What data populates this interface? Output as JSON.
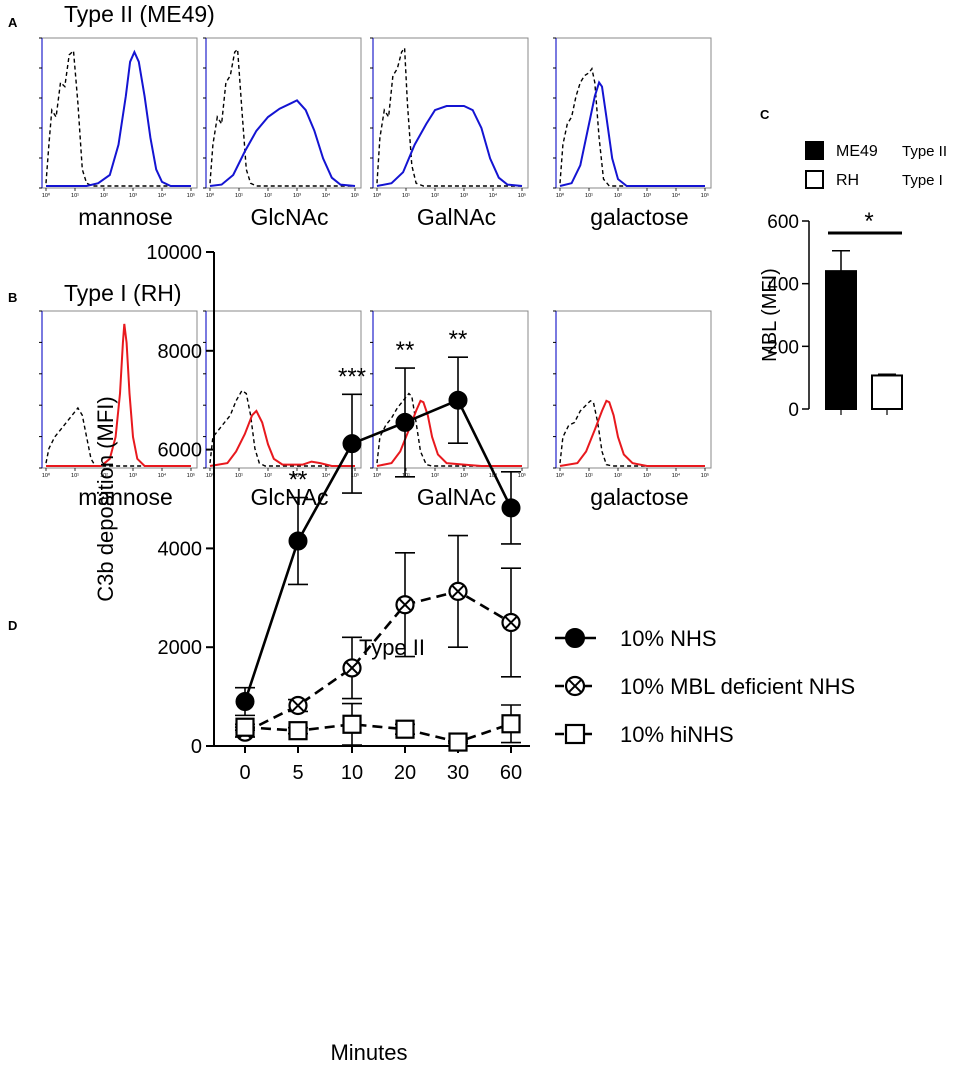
{
  "colors": {
    "type2": "#1414d2",
    "type1": "#e8191e",
    "control": "#000000",
    "axis": "#2222cc",
    "frame": "#888888"
  },
  "panels": {
    "A": {
      "letter": "A",
      "title": "Type II (ME49)"
    },
    "B": {
      "letter": "B",
      "title": "Type I (RH)"
    },
    "C": {
      "letter": "C"
    },
    "D": {
      "letter": "D"
    }
  },
  "chart_data": [
    {
      "id": "A",
      "type": "line",
      "title": "Type II (ME49)",
      "x_scale": "log",
      "xlim": [
        1,
        100000
      ],
      "tick_labels": [
        "10⁰",
        "10¹",
        "10²",
        "10³",
        "10⁴",
        "10⁵"
      ],
      "color": "#1414d2",
      "histograms": [
        {
          "label": "mannose",
          "control": [
            [
              0,
              0.02
            ],
            [
              0.1,
              0.3
            ],
            [
              0.2,
              0.55
            ],
            [
              0.35,
              0.5
            ],
            [
              0.5,
              0.75
            ],
            [
              0.65,
              0.72
            ],
            [
              0.8,
              0.95
            ],
            [
              0.95,
              0.98
            ],
            [
              1.1,
              0.6
            ],
            [
              1.25,
              0.12
            ],
            [
              1.4,
              0.02
            ],
            [
              1.6,
              0.0
            ],
            [
              5,
              0.0
            ]
          ],
          "stained": [
            [
              0,
              0.0
            ],
            [
              1.4,
              0.0
            ],
            [
              1.8,
              0.02
            ],
            [
              2.2,
              0.08
            ],
            [
              2.5,
              0.3
            ],
            [
              2.75,
              0.65
            ],
            [
              2.9,
              0.9
            ],
            [
              3.05,
              0.97
            ],
            [
              3.2,
              0.9
            ],
            [
              3.4,
              0.65
            ],
            [
              3.6,
              0.35
            ],
            [
              3.8,
              0.12
            ],
            [
              4.0,
              0.03
            ],
            [
              4.3,
              0.0
            ],
            [
              5,
              0.0
            ]
          ]
        },
        {
          "label": "GlcNAc",
          "control": [
            [
              0,
              0.02
            ],
            [
              0.1,
              0.3
            ],
            [
              0.25,
              0.5
            ],
            [
              0.4,
              0.45
            ],
            [
              0.55,
              0.75
            ],
            [
              0.7,
              0.8
            ],
            [
              0.85,
              0.97
            ],
            [
              0.95,
              0.99
            ],
            [
              1.1,
              0.55
            ],
            [
              1.25,
              0.12
            ],
            [
              1.4,
              0.02
            ],
            [
              1.6,
              0.0
            ],
            [
              5,
              0.0
            ]
          ],
          "stained": [
            [
              0,
              0.0
            ],
            [
              0.4,
              0.01
            ],
            [
              0.8,
              0.08
            ],
            [
              1.2,
              0.25
            ],
            [
              1.6,
              0.4
            ],
            [
              2.0,
              0.5
            ],
            [
              2.4,
              0.56
            ],
            [
              2.8,
              0.6
            ],
            [
              3.0,
              0.62
            ],
            [
              3.3,
              0.55
            ],
            [
              3.6,
              0.4
            ],
            [
              3.9,
              0.2
            ],
            [
              4.2,
              0.06
            ],
            [
              4.5,
              0.01
            ],
            [
              5,
              0.0
            ]
          ]
        },
        {
          "label": "GalNAc",
          "control": [
            [
              0,
              0.02
            ],
            [
              0.1,
              0.35
            ],
            [
              0.25,
              0.55
            ],
            [
              0.4,
              0.5
            ],
            [
              0.55,
              0.8
            ],
            [
              0.7,
              0.85
            ],
            [
              0.85,
              0.97
            ],
            [
              0.95,
              1.0
            ],
            [
              1.05,
              0.6
            ],
            [
              1.2,
              0.15
            ],
            [
              1.35,
              0.02
            ],
            [
              1.6,
              0.0
            ],
            [
              5,
              0.0
            ]
          ],
          "stained": [
            [
              0,
              0.0
            ],
            [
              0.5,
              0.02
            ],
            [
              0.9,
              0.1
            ],
            [
              1.3,
              0.3
            ],
            [
              1.7,
              0.45
            ],
            [
              2.0,
              0.55
            ],
            [
              2.4,
              0.58
            ],
            [
              2.8,
              0.58
            ],
            [
              3.0,
              0.58
            ],
            [
              3.3,
              0.55
            ],
            [
              3.6,
              0.42
            ],
            [
              3.9,
              0.2
            ],
            [
              4.2,
              0.06
            ],
            [
              4.5,
              0.01
            ],
            [
              5,
              0.0
            ]
          ]
        },
        {
          "label": "galactose",
          "control": [
            [
              0,
              0.02
            ],
            [
              0.1,
              0.3
            ],
            [
              0.25,
              0.45
            ],
            [
              0.4,
              0.5
            ],
            [
              0.55,
              0.65
            ],
            [
              0.7,
              0.75
            ],
            [
              0.85,
              0.8
            ],
            [
              1.0,
              0.82
            ],
            [
              1.1,
              0.85
            ],
            [
              1.2,
              0.75
            ],
            [
              1.35,
              0.35
            ],
            [
              1.5,
              0.05
            ],
            [
              1.7,
              0.0
            ],
            [
              5,
              0.0
            ]
          ],
          "stained": [
            [
              0,
              0.0
            ],
            [
              0.4,
              0.02
            ],
            [
              0.7,
              0.15
            ],
            [
              1.0,
              0.45
            ],
            [
              1.2,
              0.65
            ],
            [
              1.35,
              0.75
            ],
            [
              1.45,
              0.72
            ],
            [
              1.6,
              0.5
            ],
            [
              1.8,
              0.2
            ],
            [
              2.0,
              0.05
            ],
            [
              2.3,
              0.0
            ],
            [
              5,
              0.0
            ]
          ]
        }
      ]
    },
    {
      "id": "B",
      "type": "line",
      "title": "Type I (RH)",
      "x_scale": "log",
      "xlim": [
        1,
        100000
      ],
      "tick_labels": [
        "10⁰",
        "10¹",
        "10²",
        "10³",
        "10⁴",
        "10⁵"
      ],
      "color": "#e8191e",
      "histograms": [
        {
          "label": "mannose",
          "control": [
            [
              0,
              0.02
            ],
            [
              0.1,
              0.12
            ],
            [
              0.3,
              0.2
            ],
            [
              0.5,
              0.25
            ],
            [
              0.7,
              0.3
            ],
            [
              0.9,
              0.35
            ],
            [
              1.1,
              0.4
            ],
            [
              1.25,
              0.35
            ],
            [
              1.4,
              0.2
            ],
            [
              1.55,
              0.05
            ],
            [
              1.7,
              0.0
            ],
            [
              5,
              0.0
            ]
          ],
          "stained": [
            [
              0,
              0.0
            ],
            [
              1.9,
              0.0
            ],
            [
              2.2,
              0.05
            ],
            [
              2.4,
              0.2
            ],
            [
              2.55,
              0.5
            ],
            [
              2.65,
              0.85
            ],
            [
              2.7,
              0.98
            ],
            [
              2.78,
              0.85
            ],
            [
              2.88,
              0.5
            ],
            [
              3.0,
              0.2
            ],
            [
              3.15,
              0.05
            ],
            [
              3.4,
              0.0
            ],
            [
              5,
              0.0
            ]
          ]
        },
        {
          "label": "GlcNAc",
          "control": [
            [
              0,
              0.02
            ],
            [
              0.1,
              0.2
            ],
            [
              0.3,
              0.25
            ],
            [
              0.5,
              0.3
            ],
            [
              0.7,
              0.35
            ],
            [
              0.9,
              0.45
            ],
            [
              1.1,
              0.52
            ],
            [
              1.25,
              0.5
            ],
            [
              1.4,
              0.35
            ],
            [
              1.55,
              0.12
            ],
            [
              1.7,
              0.02
            ],
            [
              1.9,
              0.0
            ],
            [
              5,
              0.0
            ]
          ],
          "stained": [
            [
              0,
              0.0
            ],
            [
              0.6,
              0.02
            ],
            [
              0.9,
              0.1
            ],
            [
              1.2,
              0.22
            ],
            [
              1.45,
              0.35
            ],
            [
              1.6,
              0.38
            ],
            [
              1.8,
              0.3
            ],
            [
              2.0,
              0.15
            ],
            [
              2.2,
              0.05
            ],
            [
              2.5,
              0.01
            ],
            [
              3.2,
              0.01
            ],
            [
              3.5,
              0.03
            ],
            [
              3.8,
              0.02
            ],
            [
              4.2,
              0.0
            ],
            [
              5,
              0.0
            ]
          ]
        },
        {
          "label": "GalNAc",
          "control": [
            [
              0,
              0.02
            ],
            [
              0.1,
              0.2
            ],
            [
              0.3,
              0.28
            ],
            [
              0.5,
              0.33
            ],
            [
              0.7,
              0.4
            ],
            [
              0.9,
              0.45
            ],
            [
              1.1,
              0.5
            ],
            [
              1.2,
              0.48
            ],
            [
              1.35,
              0.3
            ],
            [
              1.5,
              0.1
            ],
            [
              1.7,
              0.01
            ],
            [
              1.9,
              0.0
            ],
            [
              5,
              0.0
            ]
          ],
          "stained": [
            [
              0,
              0.0
            ],
            [
              0.5,
              0.02
            ],
            [
              0.8,
              0.1
            ],
            [
              1.1,
              0.25
            ],
            [
              1.35,
              0.38
            ],
            [
              1.5,
              0.45
            ],
            [
              1.6,
              0.44
            ],
            [
              1.75,
              0.35
            ],
            [
              1.9,
              0.2
            ],
            [
              2.1,
              0.08
            ],
            [
              2.4,
              0.02
            ],
            [
              3.0,
              0.01
            ],
            [
              3.6,
              0.0
            ],
            [
              5,
              0.0
            ]
          ]
        },
        {
          "label": "galactose",
          "control": [
            [
              0,
              0.02
            ],
            [
              0.1,
              0.2
            ],
            [
              0.3,
              0.28
            ],
            [
              0.5,
              0.3
            ],
            [
              0.7,
              0.38
            ],
            [
              0.9,
              0.42
            ],
            [
              1.05,
              0.45
            ],
            [
              1.15,
              0.44
            ],
            [
              1.3,
              0.3
            ],
            [
              1.45,
              0.1
            ],
            [
              1.6,
              0.01
            ],
            [
              1.8,
              0.0
            ],
            [
              5,
              0.0
            ]
          ],
          "stained": [
            [
              0,
              0.0
            ],
            [
              0.6,
              0.02
            ],
            [
              0.9,
              0.1
            ],
            [
              1.2,
              0.25
            ],
            [
              1.45,
              0.38
            ],
            [
              1.6,
              0.45
            ],
            [
              1.7,
              0.44
            ],
            [
              1.85,
              0.35
            ],
            [
              2.0,
              0.2
            ],
            [
              2.2,
              0.08
            ],
            [
              2.5,
              0.02
            ],
            [
              3.0,
              0.0
            ],
            [
              5,
              0.0
            ]
          ]
        }
      ]
    },
    {
      "id": "C",
      "type": "bar",
      "categories": [
        "ME49",
        "RH"
      ],
      "values": [
        440,
        107
      ],
      "errors": [
        65,
        4
      ],
      "ylabel": "MBL (MFI)",
      "ylim": [
        0,
        600
      ],
      "yticks": [
        0,
        200,
        400,
        600
      ],
      "significance": "*",
      "legend": [
        {
          "name": "ME49",
          "type_label": "Type II",
          "fill": "filled"
        },
        {
          "name": "RH",
          "type_label": "Type I",
          "fill": "open"
        }
      ]
    },
    {
      "id": "D",
      "type": "line",
      "title": "Type II",
      "xlabel": "Minutes",
      "ylabel": "C3b deposition (MFI)",
      "categories": [
        "0",
        "5",
        "10",
        "20",
        "30",
        "60"
      ],
      "ylim": [
        0,
        10000
      ],
      "yticks": [
        0,
        2000,
        4000,
        6000,
        8000,
        10000
      ],
      "significance": [
        "",
        "**",
        "***",
        "**",
        "**",
        ""
      ],
      "series": [
        {
          "name": "10% NHS",
          "marker": "filled-circle",
          "dash": "solid",
          "values": [
            900,
            4150,
            6120,
            6550,
            7000,
            4820
          ],
          "errors": [
            280,
            880,
            1000,
            1100,
            870,
            730
          ]
        },
        {
          "name": "10% MBL deficient NHS",
          "marker": "crossed-circle",
          "dash": "dashed",
          "values": [
            280,
            820,
            1580,
            2860,
            3130,
            2500
          ],
          "errors": [
            100,
            120,
            620,
            1050,
            1130,
            1100
          ]
        },
        {
          "name": "10% hiNHS",
          "marker": "open-square",
          "dash": "dashed",
          "values": [
            380,
            310,
            440,
            340,
            80,
            450
          ],
          "errors": [
            60,
            60,
            420,
            100,
            20,
            380
          ]
        }
      ]
    }
  ]
}
